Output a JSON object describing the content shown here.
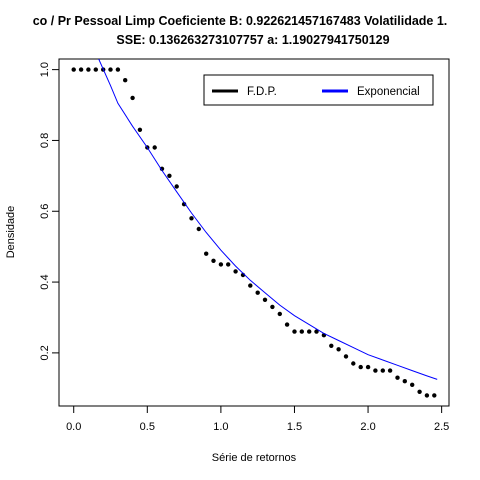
{
  "chart_data": {
    "type": "scatter",
    "title": "co / Pr Pessoal Limp Coeficiente B:  0.922621457167483 Volatilidade 1.",
    "subtitle": "SSE: 0.136263273107757  a:  1.19027941750129",
    "xlabel": "Série de retornos",
    "ylabel": "Densidade",
    "xlim": [
      -0.1,
      2.55
    ],
    "ylim": [
      0.05,
      1.03
    ],
    "x_ticks": [
      0.0,
      0.5,
      1.0,
      1.5,
      2.0,
      2.5
    ],
    "x_tick_labels": [
      "0.0",
      "0.5",
      "1.0",
      "1.5",
      "2.0",
      "2.5"
    ],
    "y_ticks": [
      0.2,
      0.4,
      0.6,
      0.8,
      1.0
    ],
    "y_tick_labels": [
      "0.2",
      "0.4",
      "0.6",
      "0.8",
      "1.0"
    ],
    "legend": {
      "placement": "top-right",
      "entries": [
        {
          "label": "F.D.P.",
          "color": "#000000"
        },
        {
          "label": "Exponencial",
          "color": "#0000ff"
        }
      ]
    },
    "series": [
      {
        "name": "F.D.P.",
        "kind": "points",
        "color": "#000000",
        "x": [
          0.0,
          0.05,
          0.1,
          0.15,
          0.2,
          0.25,
          0.3,
          0.35,
          0.4,
          0.45,
          0.5,
          0.55,
          0.6,
          0.65,
          0.7,
          0.75,
          0.8,
          0.85,
          0.9,
          0.95,
          1.0,
          1.05,
          1.1,
          1.15,
          1.2,
          1.25,
          1.3,
          1.35,
          1.4,
          1.45,
          1.5,
          1.55,
          1.6,
          1.65,
          1.7,
          1.75,
          1.8,
          1.85,
          1.9,
          1.95,
          2.0,
          2.05,
          2.1,
          2.15,
          2.2,
          2.25,
          2.3,
          2.35,
          2.4,
          2.45
        ],
        "y": [
          1.0,
          1.0,
          1.0,
          1.0,
          1.0,
          1.0,
          1.0,
          0.97,
          0.92,
          0.83,
          0.78,
          0.78,
          0.72,
          0.7,
          0.67,
          0.62,
          0.58,
          0.55,
          0.48,
          0.46,
          0.45,
          0.45,
          0.43,
          0.42,
          0.39,
          0.37,
          0.35,
          0.33,
          0.31,
          0.28,
          0.26,
          0.26,
          0.26,
          0.26,
          0.25,
          0.22,
          0.21,
          0.19,
          0.17,
          0.16,
          0.16,
          0.15,
          0.15,
          0.15,
          0.13,
          0.12,
          0.11,
          0.09,
          0.08,
          0.08
        ]
      },
      {
        "name": "Exponencial",
        "kind": "line",
        "color": "#0000ff",
        "x": [
          0.17,
          0.25,
          0.3,
          0.4,
          0.5,
          0.6,
          0.7,
          0.8,
          0.9,
          1.0,
          1.1,
          1.2,
          1.3,
          1.4,
          1.5,
          1.6,
          1.7,
          1.8,
          1.9,
          2.0,
          2.1,
          2.2,
          2.3,
          2.4,
          2.47
        ],
        "y": [
          1.03,
          0.955,
          0.905,
          0.84,
          0.78,
          0.715,
          0.655,
          0.595,
          0.54,
          0.49,
          0.445,
          0.405,
          0.37,
          0.335,
          0.305,
          0.28,
          0.255,
          0.235,
          0.215,
          0.195,
          0.18,
          0.165,
          0.15,
          0.135,
          0.125
        ]
      }
    ]
  }
}
